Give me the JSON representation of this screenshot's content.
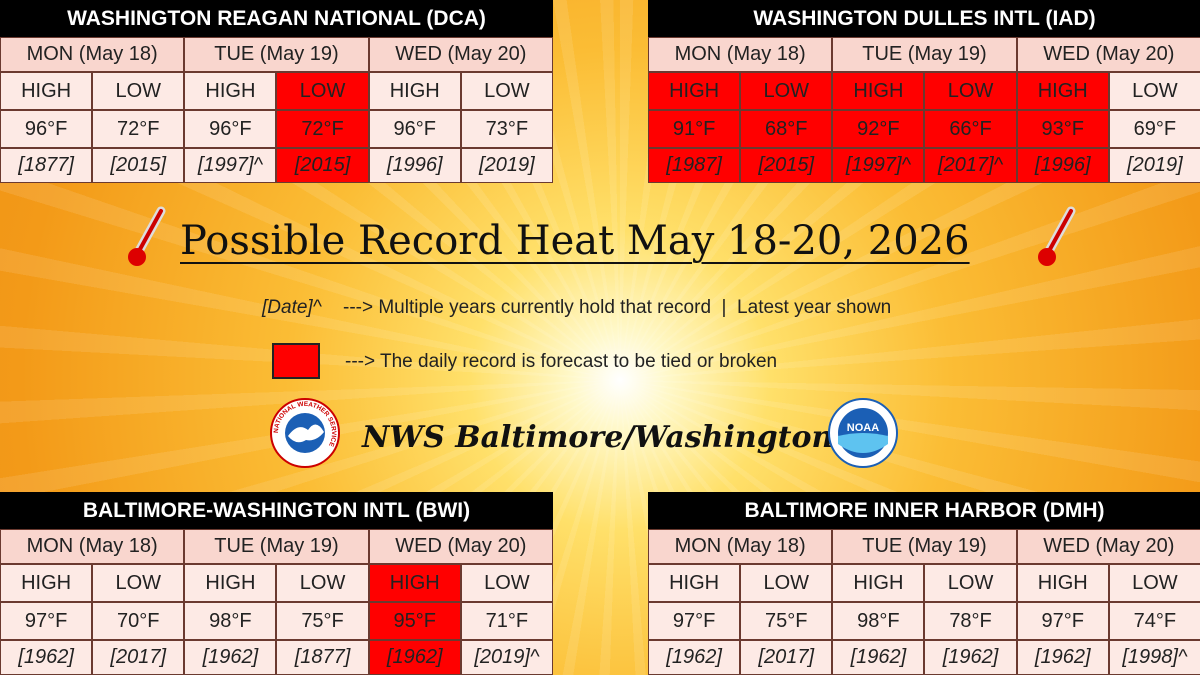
{
  "title": "Possible Record Heat May 18-20, 2026",
  "legend": {
    "marker_text": "[Date]^",
    "marker_description": "---> Multiple years currently hold that record  |  Latest year shown",
    "color_description": "---> The daily record is forecast to be tied or broken",
    "color": "#ff0000"
  },
  "footer": "NWS Baltimore/Washington",
  "logos": {
    "nws": "NATIONAL WEATHER SERVICE",
    "noaa": "NOAA"
  },
  "tables": [
    {
      "title": "WASHINGTON REAGAN NATIONAL (DCA)",
      "days": [
        "MON (May 18)",
        "TUE (May 19)",
        "WED (May 20)"
      ],
      "labels": [
        "HIGH",
        "LOW",
        "HIGH",
        "LOW",
        "HIGH",
        "LOW"
      ],
      "temps": [
        "96°F",
        "72°F",
        "96°F",
        "72°F",
        "96°F",
        "73°F"
      ],
      "years": [
        "[1877]",
        "[2015]",
        "[1997]^",
        "[2015]",
        "[1996]",
        "[2019]"
      ],
      "highlight": [
        false,
        false,
        false,
        true,
        false,
        false
      ]
    },
    {
      "title": "WASHINGTON DULLES INTL (IAD)",
      "days": [
        "MON (May 18)",
        "TUE (May 19)",
        "WED (May 20)"
      ],
      "labels": [
        "HIGH",
        "LOW",
        "HIGH",
        "LOW",
        "HIGH",
        "LOW"
      ],
      "temps": [
        "91°F",
        "68°F",
        "92°F",
        "66°F",
        "93°F",
        "69°F"
      ],
      "years": [
        "[1987]",
        "[2015]",
        "[1997]^",
        "[2017]^",
        "[1996]",
        "[2019]"
      ],
      "highlight": [
        true,
        true,
        true,
        true,
        true,
        false
      ]
    },
    {
      "title": "BALTIMORE-WASHINGTON INTL (BWI)",
      "days": [
        "MON (May 18)",
        "TUE (May 19)",
        "WED (May 20)"
      ],
      "labels": [
        "HIGH",
        "LOW",
        "HIGH",
        "LOW",
        "HIGH",
        "LOW"
      ],
      "temps": [
        "97°F",
        "70°F",
        "98°F",
        "75°F",
        "95°F",
        "71°F"
      ],
      "years": [
        "[1962]",
        "[2017]",
        "[1962]",
        "[1877]",
        "[1962]",
        "[2019]^"
      ],
      "highlight": [
        false,
        false,
        false,
        false,
        true,
        false
      ]
    },
    {
      "title": "BALTIMORE INNER HARBOR (DMH)",
      "days": [
        "MON (May 18)",
        "TUE (May 19)",
        "WED (May 20)"
      ],
      "labels": [
        "HIGH",
        "LOW",
        "HIGH",
        "LOW",
        "HIGH",
        "LOW"
      ],
      "temps": [
        "97°F",
        "75°F",
        "98°F",
        "78°F",
        "97°F",
        "74°F"
      ],
      "years": [
        "[1962]",
        "[2017]",
        "[1962]",
        "[1962]",
        "[1962]",
        "[1998]^"
      ],
      "highlight": [
        false,
        false,
        false,
        false,
        false,
        false
      ]
    }
  ]
}
